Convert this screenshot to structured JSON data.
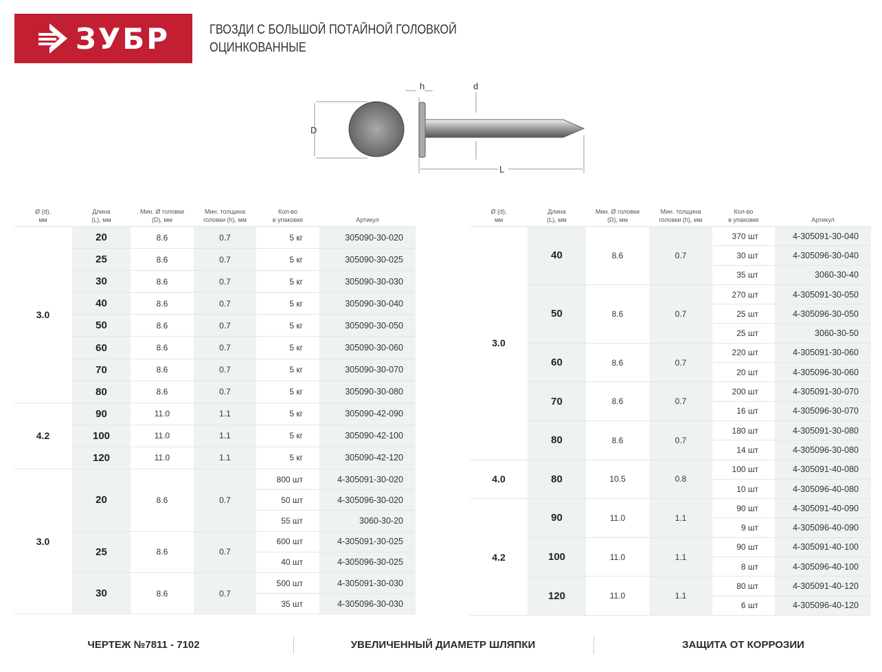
{
  "brand": {
    "name": "ЗУБР",
    "color": "#c21f32"
  },
  "title": {
    "line1": "ГВОЗДИ С БОЛЬШОЙ ПОТАЙНОЙ ГОЛОВКОЙ",
    "line2": "ОЦИНКОВАННЫЕ"
  },
  "diagram": {
    "labels": {
      "h": "h",
      "d": "d",
      "D": "D",
      "L": "L"
    }
  },
  "columns": [
    "Ø (d),\nмм",
    "Длина\n(L), мм",
    "Мин. Ø головки\n(D), мм",
    "Мин. толщина\nголовки (h), мм",
    "Кол-во\nв упаковке",
    "Артикул"
  ],
  "tables": [
    {
      "groups": [
        {
          "d": "3.0",
          "items": [
            {
              "L": "20",
              "D": "8.6",
              "h": "0.7",
              "packs": [
                {
                  "qty": "5 кг",
                  "art": "305090-30-020"
                }
              ]
            },
            {
              "L": "25",
              "D": "8.6",
              "h": "0.7",
              "packs": [
                {
                  "qty": "5 кг",
                  "art": "305090-30-025"
                }
              ]
            },
            {
              "L": "30",
              "D": "8.6",
              "h": "0.7",
              "packs": [
                {
                  "qty": "5 кг",
                  "art": "305090-30-030"
                }
              ]
            },
            {
              "L": "40",
              "D": "8.6",
              "h": "0.7",
              "packs": [
                {
                  "qty": "5 кг",
                  "art": "305090-30-040"
                }
              ]
            },
            {
              "L": "50",
              "D": "8.6",
              "h": "0.7",
              "packs": [
                {
                  "qty": "5 кг",
                  "art": "305090-30-050"
                }
              ]
            },
            {
              "L": "60",
              "D": "8.6",
              "h": "0.7",
              "packs": [
                {
                  "qty": "5 кг",
                  "art": "305090-30-060"
                }
              ]
            },
            {
              "L": "70",
              "D": "8.6",
              "h": "0.7",
              "packs": [
                {
                  "qty": "5 кг",
                  "art": "305090-30-070"
                }
              ]
            },
            {
              "L": "80",
              "D": "8.6",
              "h": "0.7",
              "packs": [
                {
                  "qty": "5 кг",
                  "art": "305090-30-080"
                }
              ]
            }
          ]
        },
        {
          "d": "4.2",
          "items": [
            {
              "L": "90",
              "D": "11.0",
              "h": "1.1",
              "packs": [
                {
                  "qty": "5 кг",
                  "art": "305090-42-090"
                }
              ]
            },
            {
              "L": "100",
              "D": "11.0",
              "h": "1.1",
              "packs": [
                {
                  "qty": "5 кг",
                  "art": "305090-42-100"
                }
              ]
            },
            {
              "L": "120",
              "D": "11.0",
              "h": "1.1",
              "packs": [
                {
                  "qty": "5 кг",
                  "art": "305090-42-120"
                }
              ]
            }
          ]
        },
        {
          "d": "3.0",
          "items": [
            {
              "L": "20",
              "D": "8.6",
              "h": "0.7",
              "packs": [
                {
                  "qty": "800 шт",
                  "art": "4-305091-30-020"
                },
                {
                  "qty": "50 шт",
                  "art": "4-305096-30-020"
                },
                {
                  "qty": "55 шт",
                  "art": "3060-30-20"
                }
              ]
            },
            {
              "L": "25",
              "D": "8.6",
              "h": "0.7",
              "packs": [
                {
                  "qty": "600 шт",
                  "art": "4-305091-30-025"
                },
                {
                  "qty": "40 шт",
                  "art": "4-305096-30-025"
                }
              ]
            },
            {
              "L": "30",
              "D": "8.6",
              "h": "0.7",
              "packs": [
                {
                  "qty": "500 шт",
                  "art": "4-305091-30-030"
                },
                {
                  "qty": "35 шт",
                  "art": "4-305096-30-030"
                }
              ]
            }
          ]
        }
      ]
    },
    {
      "groups": [
        {
          "d": "3.0",
          "items": [
            {
              "L": "40",
              "D": "8.6",
              "h": "0.7",
              "packs": [
                {
                  "qty": "370 шт",
                  "art": "4-305091-30-040"
                },
                {
                  "qty": "30 шт",
                  "art": "4-305096-30-040"
                },
                {
                  "qty": "35 шт",
                  "art": "3060-30-40"
                }
              ]
            },
            {
              "L": "50",
              "D": "8.6",
              "h": "0.7",
              "packs": [
                {
                  "qty": "270 шт",
                  "art": "4-305091-30-050"
                },
                {
                  "qty": "25 шт",
                  "art": "4-305096-30-050"
                },
                {
                  "qty": "25 шт",
                  "art": "3060-30-50"
                }
              ]
            },
            {
              "L": "60",
              "D": "8.6",
              "h": "0.7",
              "packs": [
                {
                  "qty": "220 шт",
                  "art": "4-305091-30-060"
                },
                {
                  "qty": "20 шт",
                  "art": "4-305096-30-060"
                }
              ]
            },
            {
              "L": "70",
              "D": "8.6",
              "h": "0.7",
              "packs": [
                {
                  "qty": "200 шт",
                  "art": "4-305091-30-070"
                },
                {
                  "qty": "16 шт",
                  "art": "4-305096-30-070"
                }
              ]
            },
            {
              "L": "80",
              "D": "8.6",
              "h": "0.7",
              "packs": [
                {
                  "qty": "180 шт",
                  "art": "4-305091-30-080"
                },
                {
                  "qty": "14 шт",
                  "art": "4-305096-30-080"
                }
              ]
            }
          ]
        },
        {
          "d": "4.0",
          "items": [
            {
              "L": "80",
              "D": "10.5",
              "h": "0.8",
              "packs": [
                {
                  "qty": "100 шт",
                  "art": "4-305091-40-080"
                },
                {
                  "qty": "10 шт",
                  "art": "4-305096-40-080"
                }
              ]
            }
          ]
        },
        {
          "d": "4.2",
          "items": [
            {
              "L": "90",
              "D": "11.0",
              "h": "1.1",
              "packs": [
                {
                  "qty": "90 шт",
                  "art": "4-305091-40-090"
                },
                {
                  "qty": "9 шт",
                  "art": "4-305096-40-090"
                }
              ]
            },
            {
              "L": "100",
              "D": "11.0",
              "h": "1.1",
              "packs": [
                {
                  "qty": "90 шт",
                  "art": "4-305091-40-100"
                },
                {
                  "qty": "8 шт",
                  "art": "4-305096-40-100"
                }
              ]
            },
            {
              "L": "120",
              "D": "11.0",
              "h": "1.1",
              "packs": [
                {
                  "qty": "80 шт",
                  "art": "4-305091-40-120"
                },
                {
                  "qty": "6 шт",
                  "art": "4-305096-40-120"
                }
              ]
            }
          ]
        }
      ]
    }
  ],
  "footer": [
    "ЧЕРТЕЖ №7811 - 7102",
    "УВЕЛИЧЕННЫЙ ДИАМЕТР ШЛЯПКИ",
    "ЗАЩИТА ОТ КОРРОЗИИ"
  ]
}
